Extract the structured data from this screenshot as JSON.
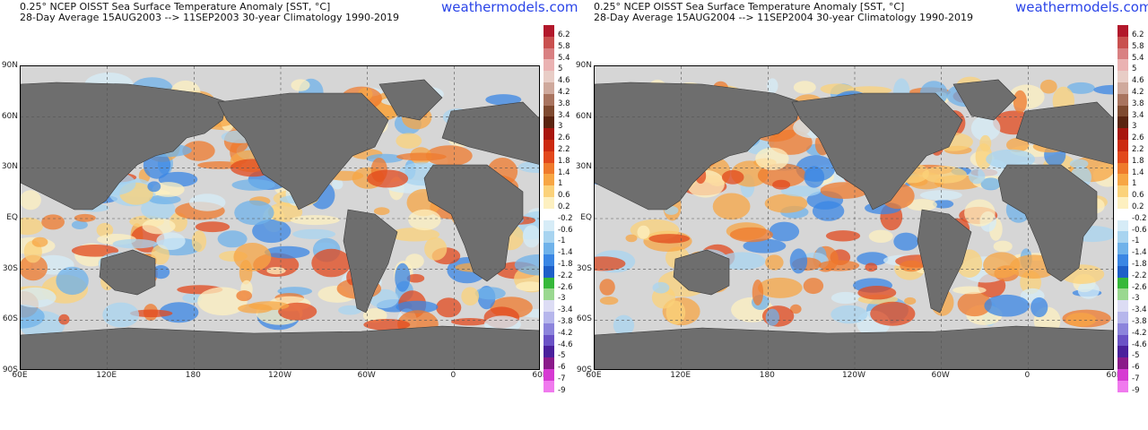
{
  "brand": "weathermodels.com",
  "panels": [
    {
      "title_line1": "0.25° NCEP OISST Sea Surface Temperature Anomaly [SST, °C]",
      "title_line2": "28-Day Average 15AUG2003 --> 11SEP2003   30-year Climatology 1990-2019"
    },
    {
      "title_line1": "0.25° NCEP OISST Sea Surface Temperature Anomaly [SST, °C]",
      "title_line2": "28-Day Average 15AUG2004 --> 11SEP2004   30-year Climatology 1990-2019"
    }
  ],
  "lat_labels": [
    "90N",
    "60N",
    "30N",
    "EQ",
    "30S",
    "60S",
    "90S"
  ],
  "lon_labels": [
    "60E",
    "120E",
    "180",
    "120W",
    "60W",
    "0",
    "60E"
  ],
  "colorbar": {
    "labels": [
      "6.2",
      "5.8",
      "5.4",
      "5",
      "4.6",
      "4.2",
      "3.8",
      "3.4",
      "3",
      "2.6",
      "2.2",
      "1.8",
      "1.4",
      "1",
      "0.6",
      "0.2",
      "-0.2",
      "-0.6",
      "-1",
      "-1.4",
      "-1.8",
      "-2.2",
      "-2.6",
      "-3",
      "-3.4",
      "-3.8",
      "-4.2",
      "-4.6",
      "-5",
      "-6",
      "-7",
      "-9"
    ],
    "colors": [
      "#b2182b",
      "#c9504f",
      "#d98082",
      "#eab2b2",
      "#e8cdc6",
      "#cfa99c",
      "#a9745f",
      "#7f4a30",
      "#5a2410",
      "#a8160e",
      "#cc2a10",
      "#e2481c",
      "#ef7a2c",
      "#f7a644",
      "#fbd27a",
      "#fdf0c0",
      "#ffffff",
      "#d6ecf7",
      "#a8d4f0",
      "#6fb2ea",
      "#3a86e4",
      "#1e5fc8",
      "#36b83a",
      "#9ad890",
      "#dcdcf4",
      "#b6b6ec",
      "#8c84dc",
      "#6a52c6",
      "#4a209c",
      "#8a1a8a",
      "#d63ad2",
      "#f07aee"
    ]
  },
  "legend_units": "°C",
  "map_regions": {
    "land_color": "#6e6e6e",
    "ocean_missing_color": "#d6d6d6"
  }
}
